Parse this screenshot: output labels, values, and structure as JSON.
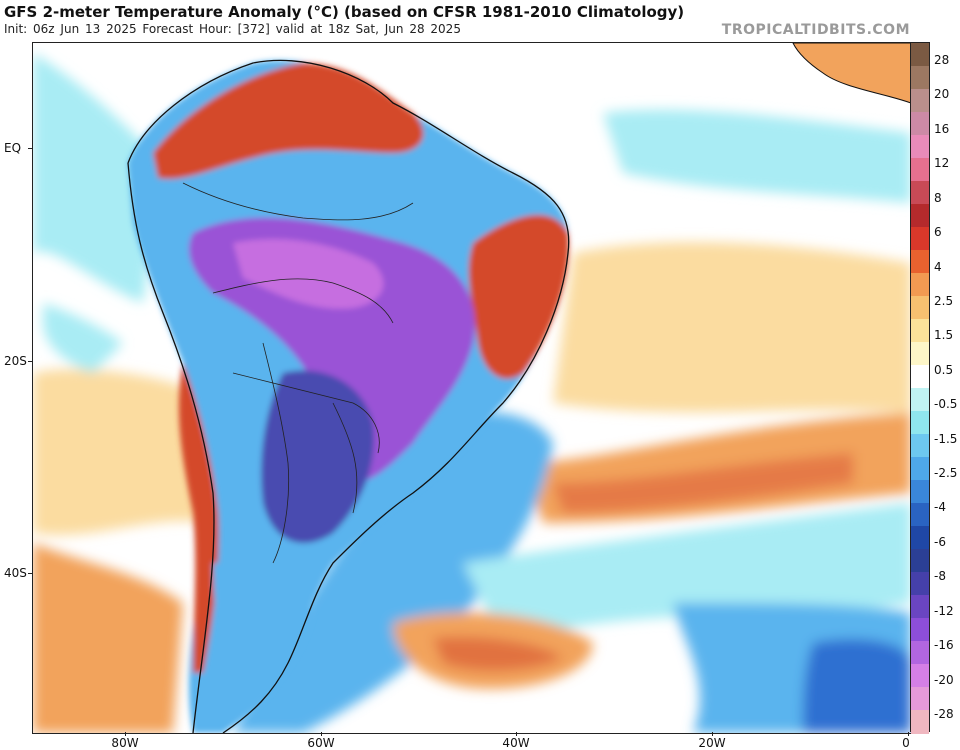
{
  "header": {
    "title": "GFS 2-meter Temperature Anomaly (°C) (based on CFSR 1981-2010 Climatology)",
    "subtitle": "Init: 06z Jun 13 2025   Forecast Hour: [372]   valid at 18z Sat, Jun 28 2025",
    "brand": "TROPICALTIDBITS.COM"
  },
  "axes": {
    "lat_labels": [
      "EQ",
      "20S",
      "40S"
    ],
    "lon_labels": [
      "80W",
      "60W",
      "40W",
      "20W",
      "0"
    ]
  },
  "colorbar": {
    "labels": [
      "28",
      "20",
      "16",
      "12",
      "8",
      "6",
      "4",
      "2.5",
      "1.5",
      "0.5",
      "-0.5",
      "-1.5",
      "-2.5",
      "-4",
      "-6",
      "-8",
      "-12",
      "-16",
      "-20",
      "-28"
    ],
    "colors": [
      "#7b5a43",
      "#9c7862",
      "#b98f8c",
      "#cc8aa6",
      "#e98bb9",
      "#e5708f",
      "#c84a56",
      "#b42a2c",
      "#d8382a",
      "#e8622f",
      "#f29a52",
      "#f7c070",
      "#fbe29a",
      "#fdf6c8",
      "#ffffff",
      "#bff3f3",
      "#8fe6ee",
      "#6dc8f0",
      "#4ea8ea",
      "#3a86d9",
      "#2a63c2",
      "#1f47a6",
      "#2b3f95",
      "#4540aa",
      "#6a45c2",
      "#8d4ed8",
      "#b266e0",
      "#d57fe6",
      "#e59ad9",
      "#f0b7c0"
    ]
  },
  "map": {
    "anomaly_colors": {
      "warm_strong": "#d44a2c",
      "warm": "#f2a35c",
      "warm_light": "#fbdca0",
      "neutral": "#ffffff",
      "cool_light": "#a9ecf4",
      "cool": "#5ab4ee",
      "cool_strong": "#2f6fd1",
      "cold": "#4a4bb0",
      "very_cold": "#9a52d6",
      "extreme_cold": "#c66ee0"
    }
  }
}
